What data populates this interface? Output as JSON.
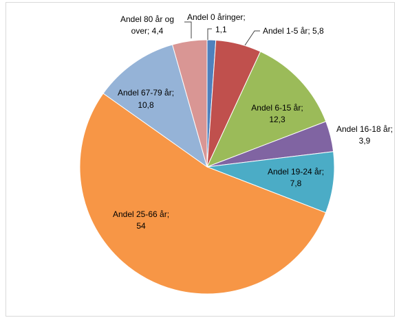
{
  "chart_data": {
    "type": "pie",
    "title": "",
    "legend": "none",
    "slices": [
      {
        "label": "Andel 0 åringer",
        "value": 1.1,
        "color": "#4f81bd",
        "text1": "Andel 0 åringer;",
        "text2": "1,1"
      },
      {
        "label": "Andel 1-5 år",
        "value": 5.8,
        "color": "#c0504d",
        "text1": "Andel 1-5 år; 5,8",
        "text2": ""
      },
      {
        "label": "Andel 6-15 år",
        "value": 12.3,
        "color": "#9bbb59",
        "text1": "Andel 6-15 år;",
        "text2": "12,3"
      },
      {
        "label": "Andel 16-18 år",
        "value": 3.9,
        "color": "#8064a2",
        "text1": "Andel 16-18 år;",
        "text2": "3,9"
      },
      {
        "label": "Andel 19-24 år",
        "value": 7.8,
        "color": "#4bacc6",
        "text1": "Andel 19-24 år;",
        "text2": "7,8"
      },
      {
        "label": "Andel 25-66 år",
        "value": 54,
        "color": "#f79646",
        "text1": "Andel 25-66 år;",
        "text2": "54"
      },
      {
        "label": "Andel 67-79 år",
        "value": 10.8,
        "color": "#95b3d7",
        "text1": "Andel 67-79 år;",
        "text2": "10,8"
      },
      {
        "label": "Andel 80 år og over",
        "value": 4.4,
        "color": "#d99694",
        "text1": "Andel 80 år og",
        "text2": "over; 4,4"
      }
    ]
  }
}
